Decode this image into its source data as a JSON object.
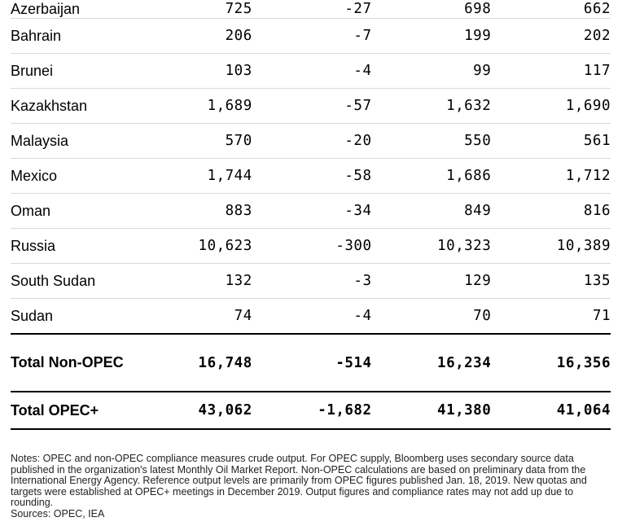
{
  "chart_data": {
    "type": "table",
    "rows": [
      {
        "name": "Azerbaijan",
        "values": [
          "725",
          "-27",
          "698",
          "662"
        ]
      },
      {
        "name": "Bahrain",
        "values": [
          "206",
          "-7",
          "199",
          "202"
        ]
      },
      {
        "name": "Brunei",
        "values": [
          "103",
          "-4",
          "99",
          "117"
        ]
      },
      {
        "name": "Kazakhstan",
        "values": [
          "1,689",
          "-57",
          "1,632",
          "1,690"
        ]
      },
      {
        "name": "Malaysia",
        "values": [
          "570",
          "-20",
          "550",
          "561"
        ]
      },
      {
        "name": "Mexico",
        "values": [
          "1,744",
          "-58",
          "1,686",
          "1,712"
        ]
      },
      {
        "name": "Oman",
        "values": [
          "883",
          "-34",
          "849",
          "816"
        ]
      },
      {
        "name": "Russia",
        "values": [
          "10,623",
          "-300",
          "10,323",
          "10,389"
        ]
      },
      {
        "name": "South Sudan",
        "values": [
          "132",
          "-3",
          "129",
          "135"
        ]
      },
      {
        "name": "Sudan",
        "values": [
          "74",
          "-4",
          "70",
          "71"
        ]
      }
    ],
    "totals": [
      {
        "name": "Total Non-OPEC",
        "values": [
          "16,748",
          "-514",
          "16,234",
          "16,356"
        ]
      },
      {
        "name": "Total OPEC+",
        "values": [
          "43,062",
          "-1,682",
          "41,380",
          "41,064"
        ]
      }
    ]
  },
  "notes": {
    "text": "Notes: OPEC and non-OPEC compliance measures crude output. For OPEC supply, Bloomberg uses secondary source data published in the organization's latest Monthly Oil Market Report. Non-OPEC calculations are based on preliminary data from the International Energy Agency. Reference output levels are primarily from OPEC figures published Jan. 18, 2019. New quotas and targets were established at OPEC+ meetings in December 2019. Output figures and compliance rates may not add up due to rounding.",
    "sources": "Sources: OPEC, IEA"
  }
}
